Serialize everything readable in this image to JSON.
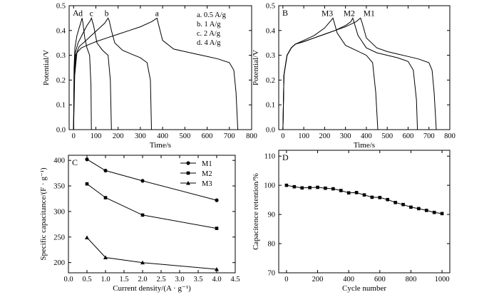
{
  "chart_data": [
    {
      "panel": "A",
      "type": "line",
      "xlabel": "Time/s",
      "ylabel": "Potential/V",
      "xlim": [
        -20,
        800
      ],
      "ylim": [
        0,
        0.5
      ],
      "xticks": [
        "0",
        "100",
        "200",
        "300",
        "400",
        "500",
        "600",
        "700",
        "800"
      ],
      "yticks": [
        "0.0",
        "0.1",
        "0.2",
        "0.3",
        "0.4",
        "0.5"
      ],
      "legend_position": "top-right",
      "legend": [
        "a. 0.5 A/g",
        "b. 1 A/g",
        "c. 2 A/g",
        "d. 4 A/g"
      ],
      "series": [
        {
          "name": "a",
          "label": "a",
          "x": [
            0,
            5,
            15,
            35,
            60,
            100,
            150,
            200,
            250,
            300,
            350,
            375,
            380,
            400,
            450,
            500,
            550,
            600,
            650,
            700,
            720,
            730,
            738
          ],
          "y": [
            0,
            0.22,
            0.31,
            0.33,
            0.34,
            0.355,
            0.37,
            0.385,
            0.4,
            0.415,
            0.435,
            0.45,
            0.43,
            0.36,
            0.325,
            0.315,
            0.305,
            0.295,
            0.285,
            0.27,
            0.24,
            0.15,
            0
          ]
        },
        {
          "name": "b",
          "label": "b",
          "x": [
            0,
            3,
            10,
            25,
            50,
            80,
            110,
            140,
            155,
            160,
            170,
            185,
            220,
            260,
            300,
            330,
            345,
            350
          ],
          "y": [
            0,
            0.22,
            0.3,
            0.335,
            0.355,
            0.38,
            0.405,
            0.43,
            0.45,
            0.44,
            0.4,
            0.35,
            0.32,
            0.305,
            0.29,
            0.27,
            0.2,
            0
          ],
          "label_position": "peak"
        },
        {
          "name": "c",
          "label": "c",
          "x": [
            0,
            3,
            8,
            20,
            40,
            60,
            75,
            80,
            90,
            105,
            130,
            155,
            165,
            170
          ],
          "y": [
            0,
            0.23,
            0.31,
            0.35,
            0.385,
            0.42,
            0.44,
            0.45,
            0.42,
            0.35,
            0.32,
            0.3,
            0.2,
            0
          ]
        },
        {
          "name": "d",
          "label": "d",
          "x": [
            0,
            2,
            6,
            15,
            25,
            35,
            38,
            42,
            50,
            60,
            72,
            78,
            80
          ],
          "y": [
            0,
            0.25,
            0.33,
            0.38,
            0.41,
            0.44,
            0.45,
            0.43,
            0.37,
            0.33,
            0.3,
            0.18,
            0
          ]
        }
      ]
    },
    {
      "panel": "B",
      "type": "line",
      "xlabel": "Time/s",
      "ylabel": "Potential/V",
      "xlim": [
        -20,
        800
      ],
      "ylim": [
        0,
        0.5
      ],
      "xticks": [
        "0",
        "100",
        "200",
        "300",
        "400",
        "500",
        "600",
        "700",
        "800"
      ],
      "yticks": [
        "0.0",
        "0.1",
        "0.2",
        "0.3",
        "0.4",
        "0.5"
      ],
      "series": [
        {
          "name": "M1",
          "label": "M1",
          "x": [
            0,
            5,
            20,
            40,
            60,
            100,
            150,
            200,
            250,
            300,
            350,
            372,
            380,
            400,
            450,
            500,
            550,
            600,
            650,
            700,
            715,
            725,
            735
          ],
          "y": [
            0,
            0.22,
            0.3,
            0.33,
            0.345,
            0.355,
            0.37,
            0.385,
            0.4,
            0.415,
            0.435,
            0.45,
            0.43,
            0.37,
            0.33,
            0.315,
            0.305,
            0.295,
            0.285,
            0.27,
            0.24,
            0.15,
            0
          ]
        },
        {
          "name": "M2",
          "label": "M2",
          "x": [
            0,
            5,
            20,
            40,
            60,
            100,
            150,
            200,
            250,
            300,
            325,
            335,
            360,
            400,
            450,
            500,
            550,
            600,
            625,
            640,
            645
          ],
          "y": [
            0,
            0.22,
            0.3,
            0.33,
            0.345,
            0.355,
            0.37,
            0.385,
            0.4,
            0.42,
            0.435,
            0.45,
            0.38,
            0.33,
            0.31,
            0.3,
            0.29,
            0.275,
            0.24,
            0.12,
            0
          ]
        },
        {
          "name": "M3",
          "label": "M3",
          "x": [
            0,
            5,
            20,
            40,
            60,
            100,
            150,
            200,
            230,
            240,
            260,
            300,
            350,
            400,
            430,
            445,
            455
          ],
          "y": [
            0,
            0.22,
            0.3,
            0.33,
            0.345,
            0.36,
            0.38,
            0.41,
            0.44,
            0.45,
            0.39,
            0.34,
            0.32,
            0.3,
            0.27,
            0.15,
            0
          ]
        }
      ]
    },
    {
      "panel": "C",
      "type": "line",
      "xlabel": "Current density/(A · g⁻¹)",
      "ylabel": "Specific capacitance/(F · g⁻¹)",
      "xlim": [
        0,
        4.5
      ],
      "ylim": [
        180,
        410
      ],
      "xticks": [
        "0.0",
        "0.5",
        "1.0",
        "1.5",
        "2.0",
        "2.5",
        "3.0",
        "3.5",
        "4.0",
        "4.5"
      ],
      "yticks": [
        "200",
        "250",
        "300",
        "350",
        "400"
      ],
      "legend_position": "top-right",
      "series": [
        {
          "name": "M1",
          "marker": "circle",
          "x": [
            0.5,
            1,
            2,
            4
          ],
          "y": [
            402,
            380,
            360,
            322
          ]
        },
        {
          "name": "M2",
          "marker": "square",
          "x": [
            0.5,
            1,
            2,
            4
          ],
          "y": [
            354,
            327,
            293,
            267
          ]
        },
        {
          "name": "M3",
          "marker": "triangle",
          "x": [
            0.5,
            1,
            2,
            4
          ],
          "y": [
            249,
            210,
            200,
            187
          ]
        }
      ]
    },
    {
      "panel": "D",
      "type": "line",
      "xlabel": "Cycle number",
      "ylabel": "Capacitence retention/%",
      "xlim": [
        -50,
        1050
      ],
      "ylim": [
        70,
        112
      ],
      "xticks": [
        "0",
        "200",
        "400",
        "600",
        "800",
        "1000"
      ],
      "yticks": [
        "70",
        "80",
        "90",
        "100",
        "110"
      ],
      "series": [
        {
          "name": "retention",
          "marker": "square",
          "x": [
            0,
            50,
            100,
            150,
            200,
            250,
            300,
            350,
            400,
            450,
            500,
            550,
            600,
            650,
            700,
            750,
            800,
            850,
            900,
            950,
            1000
          ],
          "y": [
            100,
            99.5,
            99.1,
            99.2,
            99.3,
            99.0,
            98.8,
            98.2,
            97.4,
            97.5,
            96.7,
            95.9,
            95.8,
            95.1,
            94.1,
            93.4,
            92.5,
            92.0,
            91.4,
            90.7,
            90.3
          ]
        }
      ]
    }
  ]
}
